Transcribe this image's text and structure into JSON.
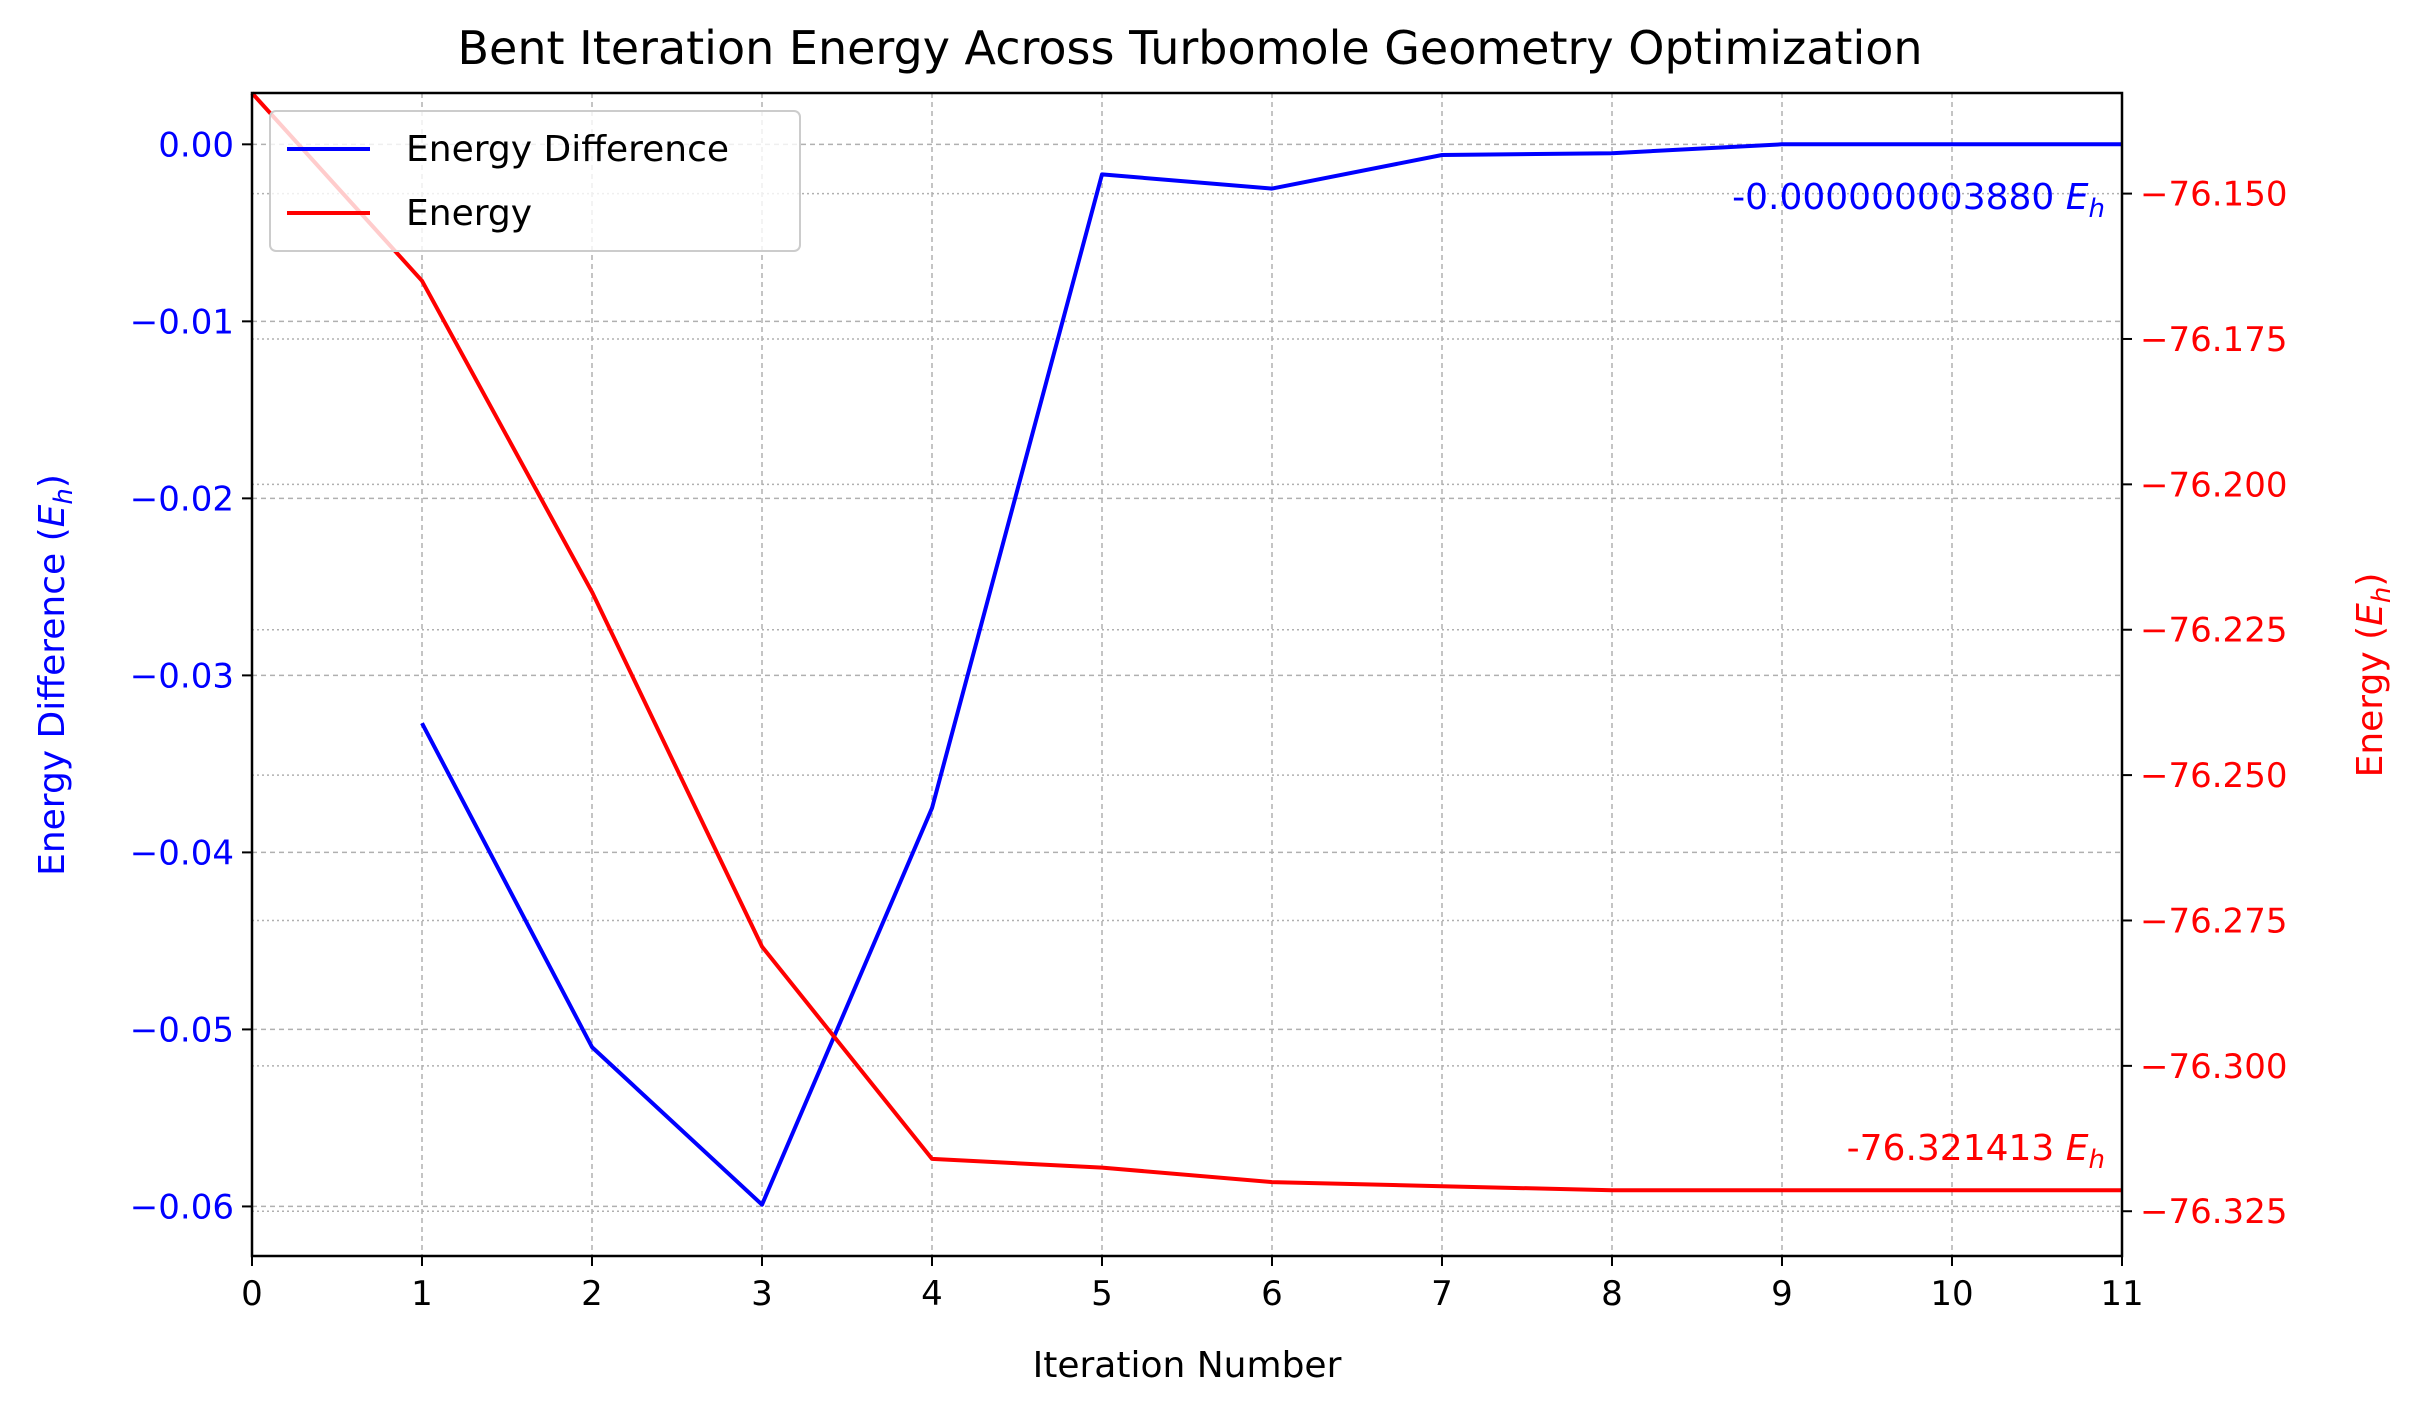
{
  "chart_data": {
    "type": "line",
    "title": "Bent Iteration Energy Across Turbomole Geometry Optimization",
    "xlabel": "Iteration Number",
    "ylabel_left": {
      "text": "Energy Difference (",
      "var": "E",
      "sub": "h",
      "close": ")"
    },
    "ylabel_right": {
      "text": "Energy (",
      "var": "E",
      "sub": "h",
      "close": ")"
    },
    "xlim": [
      0,
      11
    ],
    "ylim_left": [
      -0.0628,
      0.0029
    ],
    "ylim_right": [
      -76.3327,
      -76.1327
    ],
    "x_ticks": [
      0,
      1,
      2,
      3,
      4,
      5,
      6,
      7,
      8,
      9,
      10,
      11
    ],
    "y_ticks_left": [
      0.0,
      -0.01,
      -0.02,
      -0.03,
      -0.04,
      -0.05,
      -0.06
    ],
    "y_tick_labels_left": [
      "0.00",
      "−0.01",
      "−0.02",
      "−0.03",
      "−0.04",
      "−0.05",
      "−0.06"
    ],
    "y_ticks_right": [
      -76.15,
      -76.175,
      -76.2,
      -76.225,
      -76.25,
      -76.275,
      -76.3,
      -76.325
    ],
    "y_tick_labels_right": [
      "−76.150",
      "−76.175",
      "−76.200",
      "−76.225",
      "−76.250",
      "−76.275",
      "−76.300",
      "−76.325"
    ],
    "grid": true,
    "legend_position": "upper-left",
    "series": [
      {
        "name": "Energy Difference",
        "axis": "left",
        "color": "#0000ff",
        "x": [
          1,
          2,
          3,
          4,
          5,
          6,
          7,
          8,
          9,
          10,
          11
        ],
        "values": [
          -0.0327,
          -0.051,
          -0.0599,
          -0.0375,
          -0.0017,
          -0.0025,
          -0.0006,
          -0.0005,
          0.0,
          0.0,
          0.0
        ]
      },
      {
        "name": "Energy",
        "axis": "right",
        "color": "#ff0000",
        "x": [
          0,
          1,
          2,
          3,
          4,
          5,
          6,
          7,
          8,
          9,
          10,
          11
        ],
        "values": [
          -76.1327,
          -76.165,
          -76.2185,
          -76.2795,
          -76.316,
          -76.3175,
          -76.32,
          -76.3207,
          -76.3214,
          -76.3214,
          -76.3214,
          -76.3214
        ]
      }
    ],
    "annotations": [
      {
        "text": "-0.000000003880 ",
        "var": "E",
        "sub": "h",
        "color": "#0000ff"
      },
      {
        "text": "-76.321413 ",
        "var": "E",
        "sub": "h",
        "color": "#ff0000"
      }
    ]
  }
}
